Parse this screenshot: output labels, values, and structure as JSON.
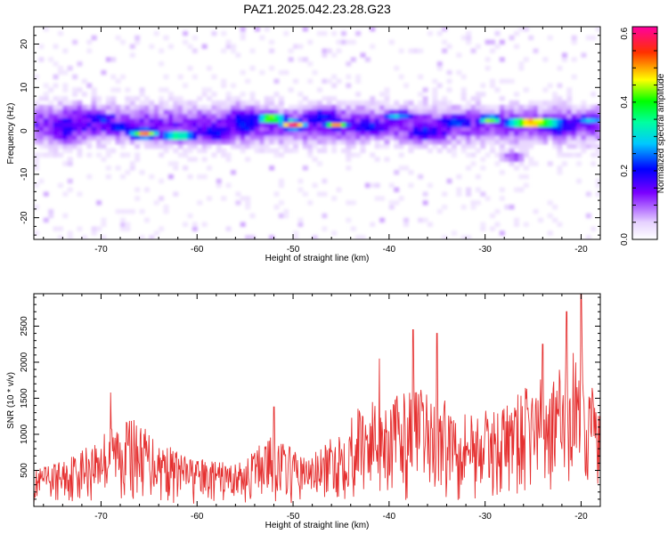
{
  "title": "PAZ1.2025.042.23.28.G23",
  "chart_data": [
    {
      "type": "heatmap",
      "xlabel": "Height of straight line (km)",
      "ylabel": "Frequency (Hz)",
      "xlim": [
        -77,
        -18
      ],
      "ylim": [
        -25,
        24
      ],
      "xticks": [
        -70,
        -60,
        -50,
        -40,
        -30,
        -20
      ],
      "yticks": [
        -20,
        -10,
        0,
        10,
        20
      ],
      "colorbar": {
        "label": "Normalized spectral amplitude",
        "range": [
          0.0,
          0.62
        ],
        "ticks": [
          0.0,
          0.2,
          0.4,
          0.6
        ],
        "tick_labels": [
          "0.0",
          "0.2",
          "0.4",
          "0.6"
        ]
      },
      "blobs": [
        {
          "x": -74,
          "y": 1,
          "rx": 2.5,
          "ry": 4,
          "v": 0.18
        },
        {
          "x": -72,
          "y": 2,
          "rx": 4.5,
          "ry": 4,
          "v": 0.16
        },
        {
          "x": -70,
          "y": 3,
          "rx": 2,
          "ry": 1.2,
          "v": 0.24
        },
        {
          "x": -68,
          "y": 1,
          "rx": 2.5,
          "ry": 1.5,
          "v": 0.22
        },
        {
          "x": -65.5,
          "y": -0.5,
          "rx": 1.6,
          "ry": 1.1,
          "v": 0.52
        },
        {
          "x": -62,
          "y": -1,
          "rx": 2,
          "ry": 1.2,
          "v": 0.4
        },
        {
          "x": -58,
          "y": 0,
          "rx": 3,
          "ry": 2.5,
          "v": 0.2
        },
        {
          "x": -55,
          "y": 2,
          "rx": 2.5,
          "ry": 3.5,
          "v": 0.22
        },
        {
          "x": -52.3,
          "y": 3,
          "rx": 1.5,
          "ry": 1.2,
          "v": 0.5
        },
        {
          "x": -50,
          "y": 1.5,
          "rx": 1.4,
          "ry": 1.1,
          "v": 0.6
        },
        {
          "x": -47,
          "y": 3,
          "rx": 3,
          "ry": 2.5,
          "v": 0.2
        },
        {
          "x": -45.5,
          "y": 1.5,
          "rx": 1.3,
          "ry": 0.9,
          "v": 0.52
        },
        {
          "x": -42,
          "y": 1,
          "rx": 3,
          "ry": 2.5,
          "v": 0.2
        },
        {
          "x": -39,
          "y": 3.5,
          "rx": 2,
          "ry": 1.2,
          "v": 0.28
        },
        {
          "x": -36,
          "y": 0,
          "rx": 3,
          "ry": 2.5,
          "v": 0.2
        },
        {
          "x": -33,
          "y": 2,
          "rx": 2.5,
          "ry": 2,
          "v": 0.22
        },
        {
          "x": -29.5,
          "y": 2.8,
          "rx": 1.2,
          "ry": 0.9,
          "v": 0.48
        },
        {
          "x": -25,
          "y": 2,
          "rx": 3,
          "ry": 1,
          "v": 0.6
        },
        {
          "x": -27,
          "y": -6,
          "rx": 1.2,
          "ry": 1.5,
          "v": 0.12
        },
        {
          "x": -22,
          "y": 1,
          "rx": 3,
          "ry": 2.5,
          "v": 0.2
        },
        {
          "x": -19,
          "y": 2.5,
          "rx": 2,
          "ry": 1.2,
          "v": 0.3
        }
      ]
    },
    {
      "type": "line",
      "xlabel": "Height of straight line (km)",
      "ylabel": "SNR (10 * v/v)",
      "xlim": [
        -77,
        -18
      ],
      "ylim": [
        0,
        2950
      ],
      "xticks": [
        -70,
        -60,
        -50,
        -40,
        -30,
        -20
      ],
      "yticks": [
        500,
        1000,
        1500,
        2000,
        2500
      ],
      "color": "#e53030",
      "envelope": [
        {
          "x": -77,
          "y": 500
        },
        {
          "x": -74,
          "y": 650
        },
        {
          "x": -71,
          "y": 900
        },
        {
          "x": -69,
          "y": 1150
        },
        {
          "x": -67,
          "y": 1250
        },
        {
          "x": -65,
          "y": 1050
        },
        {
          "x": -63,
          "y": 850
        },
        {
          "x": -61,
          "y": 700
        },
        {
          "x": -58,
          "y": 620
        },
        {
          "x": -55,
          "y": 620
        },
        {
          "x": -53,
          "y": 1000
        },
        {
          "x": -51,
          "y": 900
        },
        {
          "x": -49,
          "y": 700
        },
        {
          "x": -47,
          "y": 800
        },
        {
          "x": -45,
          "y": 1100
        },
        {
          "x": -43,
          "y": 1450
        },
        {
          "x": -41,
          "y": 1500
        },
        {
          "x": -39,
          "y": 1550
        },
        {
          "x": -37,
          "y": 1650
        },
        {
          "x": -35,
          "y": 1500
        },
        {
          "x": -33,
          "y": 1450
        },
        {
          "x": -31,
          "y": 1300
        },
        {
          "x": -29,
          "y": 1350
        },
        {
          "x": -27,
          "y": 1500
        },
        {
          "x": -25,
          "y": 1750
        },
        {
          "x": -23,
          "y": 1800
        },
        {
          "x": -21,
          "y": 2100
        },
        {
          "x": -20,
          "y": 2500
        },
        {
          "x": -19,
          "y": 1800
        },
        {
          "x": -18,
          "y": 1300
        }
      ],
      "peaks": [
        {
          "x": -20,
          "y": 2950
        },
        {
          "x": -21.5,
          "y": 2700
        },
        {
          "x": -24,
          "y": 2250
        },
        {
          "x": -37.5,
          "y": 2450
        },
        {
          "x": -35,
          "y": 2400
        },
        {
          "x": -41,
          "y": 2050
        },
        {
          "x": -69,
          "y": 1580
        },
        {
          "x": -52,
          "y": 1380
        }
      ]
    }
  ]
}
